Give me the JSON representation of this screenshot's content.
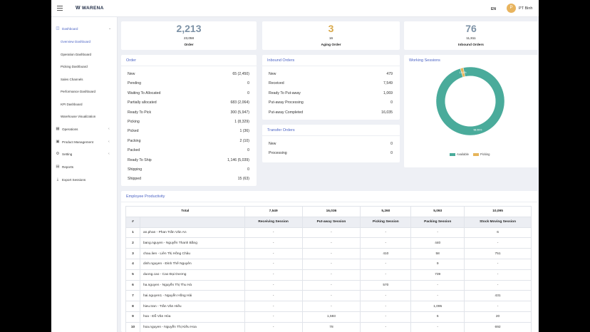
{
  "header": {
    "logo": "WARENA",
    "lang": "EN",
    "avatar_initial": "P",
    "user": "PT Binh"
  },
  "sidebar": {
    "items": [
      {
        "label": "Dashboard",
        "icon": "dashboard-icon"
      },
      {
        "label": "Operations",
        "icon": "calendar-icon"
      },
      {
        "label": "Product Management",
        "icon": "box-icon"
      },
      {
        "label": "Setting",
        "icon": "gear-icon"
      },
      {
        "label": "Reports",
        "icon": "document-icon"
      },
      {
        "label": "Export Sessions",
        "icon": "download-icon"
      }
    ],
    "sub_items": [
      "Overview Dashboard",
      "Operation Dashboard",
      "Picking Dashboard",
      "Sales Channels",
      "Performance Dashboard",
      "KPI Dashboard",
      "Warehouse Visualization"
    ]
  },
  "stats": [
    {
      "big": "2,213",
      "small": "23,058",
      "caption": "Order",
      "color": "#7d92a6"
    },
    {
      "big": "3",
      "small": "16",
      "caption": "Aging Order",
      "color": "#d9a94b"
    },
    {
      "big": "76",
      "small": "11,811",
      "caption": "Inbound Orders",
      "color": "#7d92a6"
    }
  ],
  "order": {
    "title": "Order",
    "rows": [
      {
        "label": "New",
        "value": "65 (2,450)"
      },
      {
        "label": "Pending",
        "value": "0"
      },
      {
        "label": "Waiting To Allocated",
        "value": "0"
      },
      {
        "label": "Partially allocated",
        "value": "683 (2,064)"
      },
      {
        "label": "Ready To Pick",
        "value": "300 (5,947)"
      },
      {
        "label": "Picking",
        "value": "1 (8,329)"
      },
      {
        "label": "Picked",
        "value": "1 (36)"
      },
      {
        "label": "Packing",
        "value": "2 (10)"
      },
      {
        "label": "Packed",
        "value": "0"
      },
      {
        "label": "Ready To Ship",
        "value": "1,146 (5,039)"
      },
      {
        "label": "Shipping",
        "value": "0"
      },
      {
        "label": "Shipped",
        "value": "15 (63)"
      }
    ]
  },
  "inbound": {
    "title": "Inbound Orders",
    "rows": [
      {
        "label": "New",
        "value": "479"
      },
      {
        "label": "Received",
        "value": "7,549"
      },
      {
        "label": "Ready To Put-away",
        "value": "1,069"
      },
      {
        "label": "Put-away Processing",
        "value": "0"
      },
      {
        "label": "Put-away Completed",
        "value": "16,035"
      }
    ]
  },
  "transfer": {
    "title": "Transfer Orders",
    "rows": [
      {
        "label": "New",
        "value": "0"
      },
      {
        "label": "Processing",
        "value": "0"
      }
    ]
  },
  "sessions": {
    "title": "Working Sessions",
    "colors": {
      "available": "#4aab9b",
      "picking": "#e6b45a"
    },
    "legend": [
      "Available",
      "Picking"
    ]
  },
  "chart_data": {
    "type": "pie",
    "categories": [
      "Available",
      "Picking"
    ],
    "values": [
      98.59,
      1.41
    ],
    "labels": [
      "98.59%",
      "1.41%"
    ]
  },
  "productivity": {
    "title": "Employee Productivity",
    "total_label": "Total",
    "totals": [
      "7,549",
      "16,036",
      "5,260",
      "5,093",
      "10,095"
    ],
    "hash": "#",
    "columns": [
      "Receiving Session",
      "Put-away Session",
      "Picking Session",
      "Packing Session",
      "Stock Moving Session"
    ],
    "rows": [
      {
        "n": "1",
        "name": "an.phan - Phan Trần Văn An",
        "v": [
          "-",
          "-",
          "-",
          "-",
          "6"
        ]
      },
      {
        "n": "2",
        "name": "bang.nguyen - Nguyễn Thanh Bằng",
        "v": [
          "-",
          "-",
          "-",
          "440",
          "-"
        ]
      },
      {
        "n": "3",
        "name": "chau.lien - Liên Thị Hồng Châu",
        "v": [
          "-",
          "-",
          "410",
          "58",
          "751"
        ]
      },
      {
        "n": "4",
        "name": "dinh.nguyen - Đinh Thế Nguyên",
        "v": [
          "-",
          "-",
          "-",
          "9",
          "-"
        ]
      },
      {
        "n": "5",
        "name": "duong.cao - Cao Đại Dương",
        "v": [
          "-",
          "-",
          "-",
          "739",
          "-"
        ]
      },
      {
        "n": "6",
        "name": "ha.nguyen - Nguyễn Thị Thu Hà",
        "v": [
          "-",
          "-",
          "570",
          "-",
          "-"
        ]
      },
      {
        "n": "7",
        "name": "hai.nguyen1 - Nguyễn Hồng Hải",
        "v": [
          "-",
          "-",
          "-",
          "-",
          "431"
        ]
      },
      {
        "n": "8",
        "name": "hieu.tran - Trần Văn Hiếu",
        "v": [
          "-",
          "-",
          "-",
          "1,095",
          "-"
        ]
      },
      {
        "n": "9",
        "name": "hoa - Đỗ Văn Hòa",
        "v": [
          "-",
          "1,593",
          "-",
          "6",
          "20"
        ]
      },
      {
        "n": "10",
        "name": "hoa.nguyen - Nguyễn Thị Kiều Hoa",
        "v": [
          "-",
          "78",
          "-",
          "-",
          "692"
        ]
      }
    ]
  }
}
